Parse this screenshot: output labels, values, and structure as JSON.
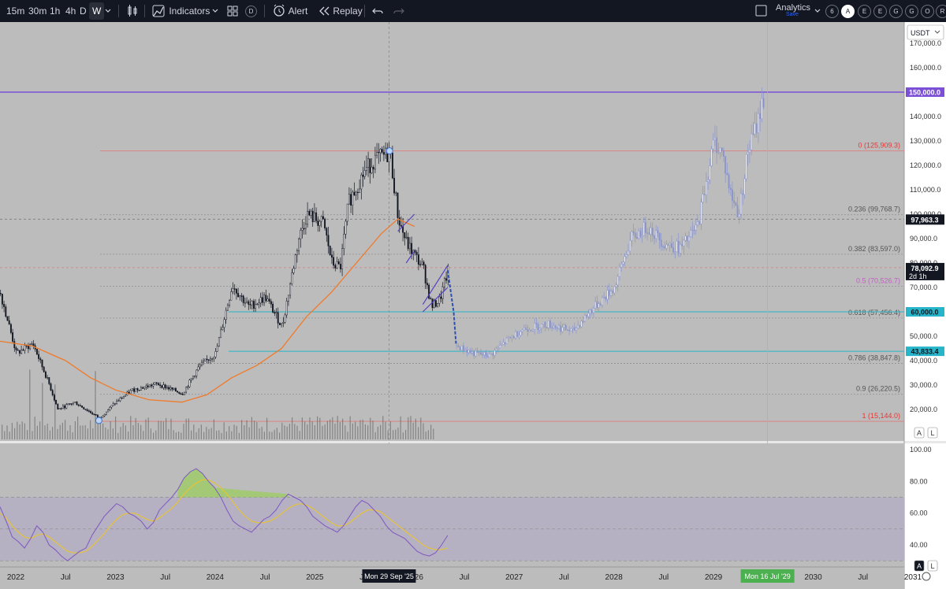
{
  "toolbar": {
    "timeframes": [
      "15m",
      "30m",
      "1h",
      "4h",
      "D",
      "W"
    ],
    "active_timeframe": "W",
    "indicators_label": "Indicators",
    "alert_label": "Alert",
    "replay_label": "Replay",
    "analytics_label": "Analytics",
    "save_label": "Save",
    "circle_buttons": [
      "6",
      "A",
      "E",
      "E",
      "G",
      "G",
      "O",
      "R"
    ],
    "icons": [
      "chevron-down-icon",
      "candles-icon",
      "indicators-icon",
      "layouts-icon",
      "templates-icon",
      "alert-icon",
      "replay-icon",
      "undo-icon",
      "redo-icon",
      "checkbox-icon"
    ]
  },
  "chart_data": [
    {
      "type": "candlestick",
      "title": "",
      "currency": "USDT",
      "y_scale": "linear",
      "ylim": [
        10000,
        175000
      ],
      "y_ticks": [
        20000,
        30000,
        40000,
        50000,
        60000,
        70000,
        80000,
        90000,
        100000,
        110000,
        120000,
        130000,
        140000,
        150000,
        160000,
        170000
      ],
      "y_tick_labels": [
        "20,000.0",
        "30,000.0",
        "40,000.0",
        "50,000.0",
        "60,000.0",
        "70,000.0",
        "80,000.0",
        "90,000.0",
        "100,000.0",
        "110,000.0",
        "120,000.0",
        "130,000.0",
        "140,000.0",
        "150,000.0",
        "160,000.0",
        "170,000.0"
      ],
      "x_range": [
        "2021-11",
        "2031-02"
      ],
      "x_tick_labels": [
        "2022",
        "Jul",
        "2023",
        "Jul",
        "2024",
        "Jul",
        "2025",
        "Jul",
        "2026",
        "Jul",
        "2027",
        "Jul",
        "2028",
        "Jul",
        "2029",
        "Jul",
        "2030",
        "Jul",
        "2031"
      ],
      "x_tick_dates": [
        "2022-01",
        "2022-07",
        "2023-01",
        "2023-07",
        "2024-01",
        "2024-07",
        "2025-01",
        "2025-07",
        "2026-01",
        "2026-07",
        "2027-01",
        "2027-07",
        "2028-01",
        "2028-07",
        "2029-01",
        "2029-07",
        "2030-01",
        "2030-07",
        "2031-01"
      ],
      "x_highlights": [
        {
          "label": "Mon 29 Sep '25",
          "date": "2025-09-29",
          "color": "#131722"
        },
        {
          "label": "Mon 16 Jul '29",
          "date": "2029-07-16",
          "color": "#4caf50"
        }
      ],
      "price_path": [
        [
          "2021-11",
          69000
        ],
        [
          "2022-01",
          43000
        ],
        [
          "2022-03",
          47000
        ],
        [
          "2022-05",
          30000
        ],
        [
          "2022-06",
          20000
        ],
        [
          "2022-08",
          23000
        ],
        [
          "2022-11",
          16500
        ],
        [
          "2023-01",
          23000
        ],
        [
          "2023-03",
          28000
        ],
        [
          "2023-06",
          30500
        ],
        [
          "2023-09",
          26500
        ],
        [
          "2023-11",
          37500
        ],
        [
          "2024-01",
          43000
        ],
        [
          "2024-03",
          71000
        ],
        [
          "2024-05",
          62000
        ],
        [
          "2024-07",
          66000
        ],
        [
          "2024-09",
          54000
        ],
        [
          "2024-11",
          90000
        ],
        [
          "2024-12",
          100000
        ],
        [
          "2025-02",
          96000
        ],
        [
          "2025-03",
          80000
        ],
        [
          "2025-04",
          78000
        ],
        [
          "2025-05",
          105000
        ],
        [
          "2025-07",
          118000
        ],
        [
          "2025-08",
          122000
        ],
        [
          "2025-10",
          125000
        ],
        [
          "2025-11",
          98000
        ],
        [
          "2025-12",
          88000
        ],
        [
          "2026-02",
          78000
        ],
        [
          "2026-03",
          62000
        ],
        [
          "2026-04",
          65000
        ],
        [
          "2026-05",
          77000
        ]
      ],
      "projection_path": [
        [
          "2026-05",
          77000
        ],
        [
          "2026-06",
          46000
        ],
        [
          "2026-08",
          43000
        ],
        [
          "2026-10",
          42000
        ],
        [
          "2026-12",
          48000
        ],
        [
          "2027-02",
          53000
        ],
        [
          "2027-05",
          55000
        ],
        [
          "2027-08",
          52000
        ],
        [
          "2027-10",
          60000
        ],
        [
          "2028-01",
          70000
        ],
        [
          "2028-03",
          90000
        ],
        [
          "2028-05",
          95000
        ],
        [
          "2028-07",
          88000
        ],
        [
          "2028-09",
          86000
        ],
        [
          "2028-11",
          95000
        ],
        [
          "2029-01",
          130000
        ],
        [
          "2029-02",
          125000
        ],
        [
          "2029-03",
          108000
        ],
        [
          "2029-04",
          100000
        ],
        [
          "2029-05",
          125000
        ],
        [
          "2029-06",
          135000
        ],
        [
          "2029-07",
          148000
        ]
      ],
      "ma_path": [
        [
          "2021-11",
          48000
        ],
        [
          "2022-03",
          46000
        ],
        [
          "2022-07",
          40000
        ],
        [
          "2022-10",
          33000
        ],
        [
          "2023-01",
          28000
        ],
        [
          "2023-05",
          24000
        ],
        [
          "2023-09",
          23000
        ],
        [
          "2023-12",
          26000
        ],
        [
          "2024-03",
          33000
        ],
        [
          "2024-06",
          38000
        ],
        [
          "2024-09",
          45000
        ],
        [
          "2024-12",
          58000
        ],
        [
          "2025-03",
          68000
        ],
        [
          "2025-06",
          80000
        ],
        [
          "2025-09",
          92000
        ],
        [
          "2025-11",
          98000
        ],
        [
          "2026-01",
          95000
        ]
      ],
      "fibonacci": [
        {
          "ratio": "0",
          "price": 125909.3,
          "label": "0 (125,909.3)",
          "color": "#e53935"
        },
        {
          "ratio": "0.236",
          "price": 99768.7,
          "label": "0.236 (99,768.7)",
          "color": "#555555"
        },
        {
          "ratio": "0.382",
          "price": 83597.0,
          "label": "0.382 (83,597.0)",
          "color": "#555555"
        },
        {
          "ratio": "0.5",
          "price": 70526.7,
          "label": "0.5 (70,526.7)",
          "color": "#c060c0"
        },
        {
          "ratio": "0.618",
          "price": 57456.4,
          "label": "0.618 (57,456.4)",
          "color": "#555555"
        },
        {
          "ratio": "0.786",
          "price": 38847.8,
          "label": "0.786 (38,847.8)",
          "color": "#555555"
        },
        {
          "ratio": "0.9",
          "price": 26220.5,
          "label": "0.9 (26,220.5)",
          "color": "#555555"
        },
        {
          "ratio": "1",
          "price": 15144.0,
          "label": "1 (15,144.0)",
          "color": "#e53935"
        }
      ],
      "horizontal_lines": [
        {
          "price": 150000,
          "label": "150,000.0",
          "color": "#7b4fd6"
        },
        {
          "price": 60000,
          "label": "60,000.0",
          "color": "#26b5c9"
        },
        {
          "price": 43833.4,
          "label": "43,833.4",
          "color": "#26b5c9"
        }
      ],
      "price_labels": [
        {
          "price": 97963.3,
          "label": "97,963.3",
          "color": "#131722"
        },
        {
          "price": 78092.9,
          "label": "78,092.9",
          "sublabel": "2d 1h",
          "color": "#131722"
        }
      ],
      "channels": [
        {
          "from": [
            "2025-11",
            93000
          ],
          "to": [
            "2026-01",
            100000
          ],
          "color": "#5a3fc0"
        },
        {
          "from": [
            "2025-12",
            80000
          ],
          "to": [
            "2026-01",
            85000
          ],
          "color": "#5a3fc0"
        },
        {
          "from": [
            "2026-02",
            63000
          ],
          "to": [
            "2026-05",
            79000
          ],
          "color": "#5a3fc0"
        },
        {
          "from": [
            "2026-02",
            60000
          ],
          "to": [
            "2026-05",
            70000
          ],
          "color": "#5a3fc0"
        }
      ],
      "markers": [
        {
          "date": "2022-11",
          "price": 15500,
          "shape": "circle"
        },
        {
          "date": "2025-10",
          "price": 125909.3,
          "shape": "circle"
        }
      ],
      "axis_buttons": [
        "A",
        "L"
      ],
      "colors": {
        "candle": "#131722",
        "projection": "#8b95c9",
        "ma": "#f07a2a",
        "fib_line": "#8a8a8a"
      }
    },
    {
      "type": "line",
      "title": "",
      "ylim": [
        25,
        105
      ],
      "y_ticks": [
        40,
        60,
        80,
        100
      ],
      "y_tick_labels": [
        "40.00",
        "60.00",
        "80.00",
        "100.00"
      ],
      "band": [
        30,
        70
      ],
      "midline": 50,
      "series": [
        {
          "values": [
            64,
            55,
            45,
            42,
            38,
            44,
            52,
            48,
            40,
            37,
            33,
            30,
            33,
            36,
            38,
            46,
            52,
            58,
            62,
            66,
            64,
            60,
            58,
            55,
            50,
            54,
            62,
            66,
            70,
            75,
            82,
            86,
            88,
            85,
            80,
            76,
            70,
            62,
            55,
            52,
            50,
            48,
            52,
            56,
            58,
            62,
            68,
            72,
            70,
            68,
            64,
            58,
            55,
            52,
            50,
            48,
            52,
            58,
            64,
            68,
            66,
            62,
            58,
            52,
            48,
            46,
            44,
            40,
            36,
            34,
            33,
            35,
            40,
            46
          ]
        },
        {
          "values": [
            60,
            57,
            52,
            48,
            45,
            44,
            46,
            47,
            45,
            42,
            39,
            36,
            35,
            35,
            36,
            39,
            43,
            47,
            52,
            56,
            59,
            60,
            60,
            58,
            56,
            55,
            57,
            60,
            63,
            67,
            72,
            76,
            79,
            81,
            81,
            79,
            76,
            72,
            67,
            62,
            58,
            55,
            54,
            54,
            55,
            57,
            60,
            63,
            65,
            66,
            65,
            63,
            60,
            57,
            54,
            52,
            52,
            54,
            57,
            60,
            62,
            62,
            61,
            58,
            55,
            52,
            49,
            46,
            43,
            40,
            38,
            37,
            37,
            38
          ]
        }
      ],
      "axis_buttons": [
        "A",
        "L"
      ],
      "colors": {
        "rsi": "#7e57c2",
        "rsi_ma": "#e6c23a",
        "band_fill": "#b3adc4",
        "overbought_fill": "#9ccc65"
      }
    }
  ]
}
